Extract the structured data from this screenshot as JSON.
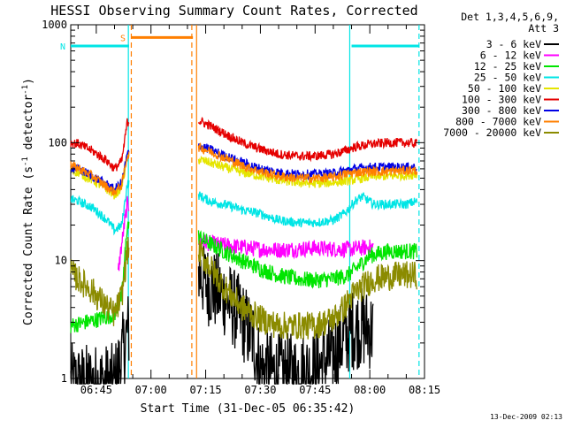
{
  "chart_data": {
    "type": "line",
    "title": "HESSI Observing Summary Count Rates, Corrected",
    "xlabel": "Start Time (31-Dec-05 06:35:42)",
    "ylabel_main": "Corrected Count Rate (s",
    "ylabel_exp1": "-1",
    "ylabel_mid": " detector",
    "ylabel_exp2": "-1",
    "ylabel_end": ")",
    "y_scale": "log",
    "ylim": [
      1,
      1000
    ],
    "xlim_min": [
      38.0,
      135.0
    ],
    "x_ticks": [
      {
        "t": 45,
        "label": "06:45"
      },
      {
        "t": 60,
        "label": "07:00"
      },
      {
        "t": 75,
        "label": "07:15"
      },
      {
        "t": 90,
        "label": "07:30"
      },
      {
        "t": 105,
        "label": "07:45"
      },
      {
        "t": 120,
        "label": "08:00"
      },
      {
        "t": 135,
        "label": "08:15"
      }
    ],
    "y_ticks": [
      {
        "v": 1,
        "label": "1"
      },
      {
        "v": 10,
        "label": "10"
      },
      {
        "v": 100,
        "label": "100"
      },
      {
        "v": 1000,
        "label": "1000"
      }
    ],
    "legend": {
      "header1": "Det 1,3,4,5,6,9,",
      "header2": "Att 3",
      "placement": "right, outside plot"
    },
    "footer_date": "13-Dec-2009 02:13",
    "flags": [
      {
        "label": "S",
        "color": "#ff7f00",
        "t_start": 54.5,
        "t_end": 71.5,
        "level": 780
      },
      {
        "label": "N",
        "color": "#00e5e5",
        "t_start": 38.0,
        "t_end": 54.0,
        "level": 660
      },
      {
        "label": "",
        "color": "#00e5e5",
        "t_start": 115.0,
        "t_end": 133.5,
        "level": 660
      }
    ],
    "night_lines": [
      {
        "t": 53.8,
        "color": "#00e5e5",
        "style": "solid"
      },
      {
        "t": 54.6,
        "color": "#ff7f00",
        "style": "dashed"
      },
      {
        "t": 71.2,
        "color": "#ff7f00",
        "style": "dashed"
      },
      {
        "t": 72.5,
        "color": "#ff7f00",
        "style": "solid"
      },
      {
        "t": 114.5,
        "color": "#00e5e5",
        "style": "solid"
      },
      {
        "t": 133.5,
        "color": "#00e5e5",
        "style": "dashed"
      }
    ],
    "gap": [
      54.0,
      73.0
    ],
    "series": [
      {
        "name": "3 - 6 keV",
        "color": "#000000",
        "x": [
          38,
          42,
          46,
          50,
          52,
          53.5,
          73,
          76,
          80,
          84,
          88,
          90,
          95,
          100,
          105,
          110,
          113,
          115,
          118,
          120,
          121
        ],
        "y": [
          0.9,
          0.9,
          0.9,
          0.9,
          1.5,
          2.5,
          8,
          6,
          5,
          3.5,
          2.2,
          1.2,
          1.1,
          1.1,
          1.2,
          1.6,
          2.2,
          2.6,
          2.7,
          2.6,
          2.5
        ]
      },
      {
        "name": "6 - 12 keV",
        "color": "#ff00ff",
        "x": [
          51,
          52,
          53.5,
          73,
          76,
          80,
          85,
          90,
          95,
          100,
          105,
          110,
          115,
          118,
          121
        ],
        "y": [
          8,
          14,
          30,
          15,
          14,
          13.5,
          13,
          12.5,
          12.3,
          12.5,
          12.8,
          12.5,
          12.5,
          12.8,
          13
        ]
      },
      {
        "name": "12 - 25 keV",
        "color": "#00e500",
        "x": [
          38,
          42,
          46,
          50,
          52,
          53.5,
          73,
          76,
          80,
          85,
          90,
          95,
          100,
          105,
          110,
          114,
          117,
          120,
          125,
          130,
          133
        ],
        "y": [
          2.8,
          3.0,
          3.2,
          3.5,
          5,
          20,
          16,
          14,
          12,
          10,
          8.5,
          7.5,
          7,
          6.8,
          7,
          7.5,
          9,
          11,
          12,
          12,
          12
        ]
      },
      {
        "name": "25 - 50 keV",
        "color": "#00e5e5",
        "x": [
          38,
          40,
          44,
          48,
          50,
          52,
          53.5,
          73,
          76,
          80,
          85,
          90,
          95,
          100,
          105,
          110,
          113,
          116,
          118,
          121,
          125,
          130,
          133
        ],
        "y": [
          33,
          32,
          28,
          22,
          18,
          20,
          45,
          36,
          32,
          30,
          27,
          25,
          22,
          21,
          21,
          22,
          25,
          32,
          35,
          30,
          30,
          30,
          32
        ]
      },
      {
        "name": "50 - 100 keV",
        "color": "#e5e500",
        "x": [
          38,
          40,
          44,
          48,
          50,
          52,
          53.5,
          73,
          76,
          80,
          85,
          90,
          95,
          100,
          105,
          110,
          115,
          118,
          121,
          125,
          130,
          133
        ],
        "y": [
          58,
          56,
          48,
          40,
          36,
          42,
          75,
          72,
          68,
          62,
          56,
          52,
          48,
          46,
          45,
          46,
          48,
          50,
          52,
          52,
          53,
          54
        ]
      },
      {
        "name": "100 - 300 keV",
        "color": "#e50000",
        "x": [
          38,
          40,
          44,
          48,
          50,
          52,
          53.5,
          73,
          76,
          80,
          85,
          90,
          95,
          100,
          105,
          110,
          113,
          116,
          120,
          125,
          130,
          133
        ],
        "y": [
          100,
          98,
          85,
          70,
          60,
          70,
          150,
          155,
          140,
          120,
          100,
          88,
          80,
          77,
          77,
          80,
          85,
          92,
          97,
          100,
          100,
          98
        ]
      },
      {
        "name": "300 - 800 keV",
        "color": "#0000e5",
        "x": [
          38,
          40,
          44,
          48,
          50,
          52,
          53.5,
          73,
          76,
          80,
          85,
          90,
          95,
          100,
          105,
          110,
          113,
          116,
          120,
          125,
          130,
          133
        ],
        "y": [
          62,
          60,
          52,
          44,
          40,
          46,
          80,
          95,
          88,
          78,
          68,
          60,
          56,
          54,
          54,
          55,
          58,
          60,
          62,
          62,
          62,
          62
        ]
      },
      {
        "name": "800 - 7000 keV",
        "color": "#ff7f00",
        "x": [
          38,
          40,
          44,
          48,
          50,
          52,
          53.5,
          73,
          76,
          80,
          85,
          90,
          95,
          100,
          105,
          110,
          113,
          116,
          120,
          125,
          130,
          133
        ],
        "y": [
          64,
          61,
          52,
          42,
          38,
          44,
          78,
          92,
          85,
          75,
          64,
          57,
          52,
          50,
          50,
          51,
          54,
          56,
          57,
          57,
          58,
          58
        ]
      },
      {
        "name": "7000 - 20000 keV",
        "color": "#8b8b00",
        "x": [
          38,
          40,
          44,
          48,
          50,
          52,
          53.5,
          73,
          76,
          80,
          85,
          90,
          95,
          100,
          105,
          110,
          113,
          115,
          118,
          121,
          124,
          128,
          133
        ],
        "y": [
          8,
          7,
          5.5,
          4,
          3.5,
          5,
          12,
          12,
          9,
          6,
          4,
          3.2,
          2.8,
          2.8,
          2.8,
          3.2,
          4,
          5,
          6,
          7,
          7.2,
          7.5,
          7.5
        ]
      }
    ]
  }
}
